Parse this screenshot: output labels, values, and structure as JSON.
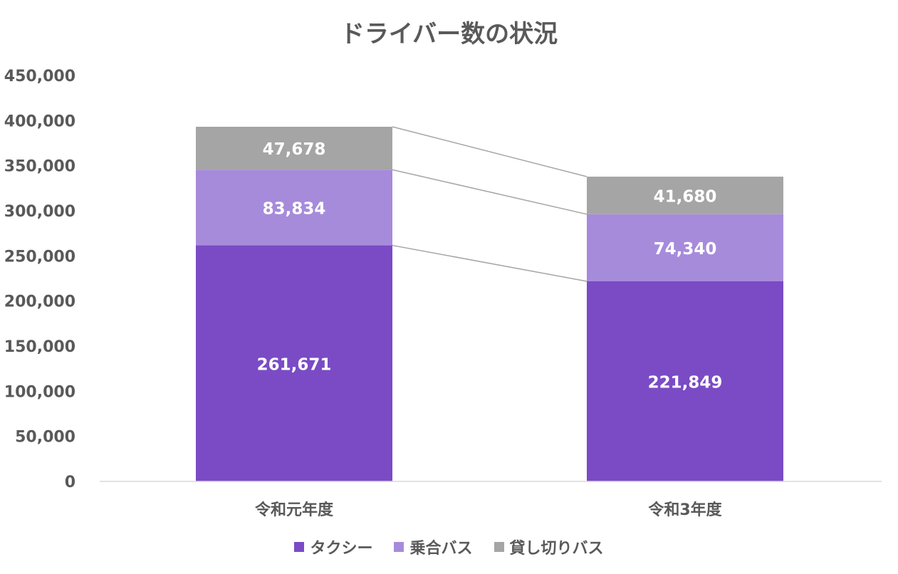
{
  "chart_data": {
    "type": "bar",
    "stacked": true,
    "title": "ドライバー数の状況",
    "categories": [
      "令和元年度",
      "令和3年度"
    ],
    "series": [
      {
        "name": "タクシー",
        "values": [
          261671,
          221849
        ],
        "labels": [
          "261,671",
          "221,849"
        ],
        "color": "#7a4bc5"
      },
      {
        "name": "乗合バス",
        "values": [
          83834,
          74340
        ],
        "labels": [
          "83,834",
          "74,340"
        ],
        "color": "#a78bdb"
      },
      {
        "name": "貸し切りバス",
        "values": [
          47678,
          41680
        ],
        "labels": [
          "47,678",
          "41,680"
        ],
        "color": "#a5a5a5"
      }
    ],
    "ylim": [
      0,
      450000
    ],
    "yticks": [
      "0",
      "50,000",
      "100,000",
      "150,000",
      "200,000",
      "250,000",
      "300,000",
      "350,000",
      "400,000",
      "450,000"
    ],
    "grid": false,
    "series_lines": true,
    "legend_position": "bottom"
  }
}
